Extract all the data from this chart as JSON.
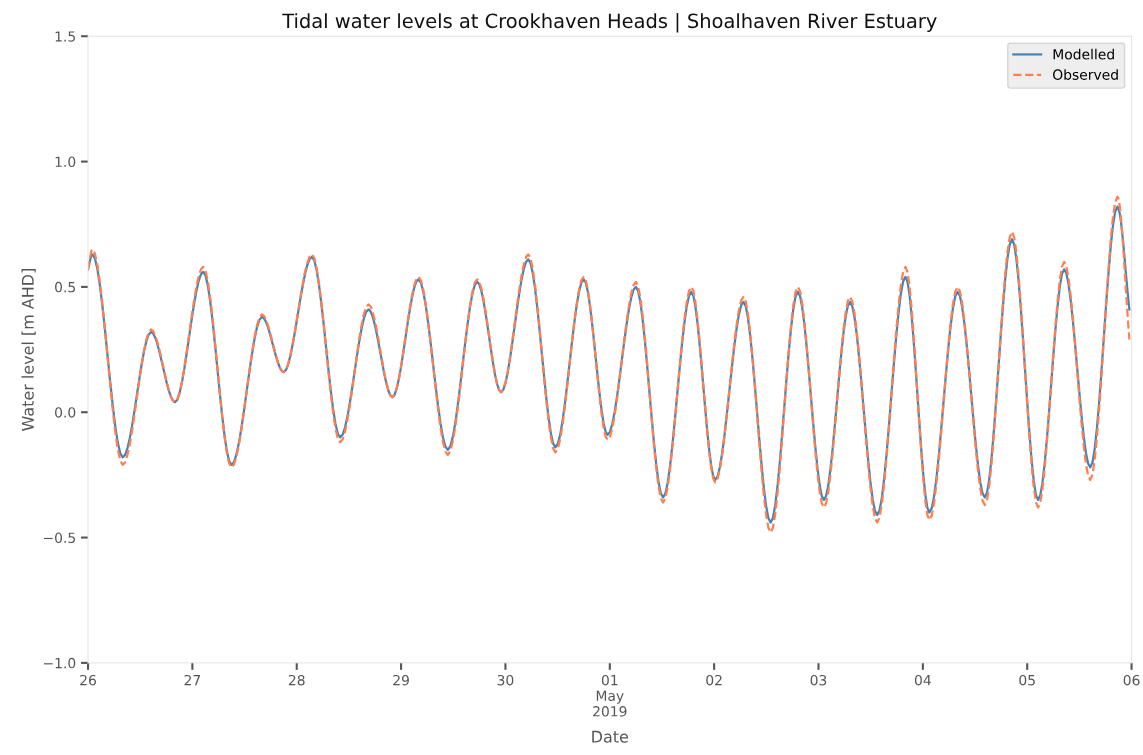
{
  "chart_data": {
    "type": "line",
    "title": "Tidal water levels at Crookhaven Heads | Shoalhaven River Estuary",
    "xlabel": "Date",
    "ylabel": "Water level [m AHD]",
    "x": [
      "2019-04-26T00:00",
      "2019-04-26T01:00",
      "2019-04-26T08:00",
      "2019-04-26T14:30",
      "2019-04-26T20:00",
      "2019-04-27T02:30",
      "2019-04-27T09:00",
      "2019-04-27T16:00",
      "2019-04-27T21:00",
      "2019-04-28T03:30",
      "2019-04-28T10:00",
      "2019-04-28T16:30",
      "2019-04-28T22:00",
      "2019-04-29T04:00",
      "2019-04-29T10:45",
      "2019-04-29T17:30",
      "2019-04-29T23:00",
      "2019-04-30T05:15",
      "2019-04-30T11:30",
      "2019-04-30T18:00",
      "2019-04-30T23:30",
      "2019-05-01T06:00",
      "2019-05-01T12:15",
      "2019-05-01T18:45",
      "2019-05-02T00:15",
      "2019-05-02T06:45",
      "2019-05-02T13:00",
      "2019-05-02T19:15",
      "2019-05-03T01:15",
      "2019-05-03T07:15",
      "2019-05-03T13:30",
      "2019-05-03T20:00",
      "2019-05-04T01:30",
      "2019-05-04T08:00",
      "2019-05-04T14:15",
      "2019-05-04T20:30",
      "2019-05-05T02:30",
      "2019-05-05T08:30",
      "2019-05-05T14:30",
      "2019-05-05T20:45",
      "2019-05-05T23:30"
    ],
    "series": [
      {
        "name": "Modelled",
        "color": "#4682b4",
        "line_style": "solid",
        "values": [
          0.57,
          0.63,
          -0.18,
          0.32,
          0.04,
          0.56,
          -0.21,
          0.38,
          0.16,
          0.62,
          -0.1,
          0.41,
          0.06,
          0.53,
          -0.15,
          0.52,
          0.08,
          0.61,
          -0.14,
          0.53,
          -0.09,
          0.5,
          -0.34,
          0.48,
          -0.27,
          0.44,
          -0.44,
          0.48,
          -0.35,
          0.44,
          -0.41,
          0.54,
          -0.4,
          0.48,
          -0.34,
          0.69,
          -0.35,
          0.57,
          -0.22,
          0.82,
          0.41
        ]
      },
      {
        "name": "Observed",
        "color": "#ff7f50",
        "line_style": "dashed",
        "values": [
          0.57,
          0.65,
          -0.21,
          0.33,
          0.04,
          0.58,
          -0.22,
          0.39,
          0.16,
          0.63,
          -0.12,
          0.43,
          0.06,
          0.54,
          -0.17,
          0.53,
          0.08,
          0.63,
          -0.16,
          0.54,
          -0.11,
          0.52,
          -0.36,
          0.5,
          -0.28,
          0.46,
          -0.48,
          0.5,
          -0.38,
          0.46,
          -0.44,
          0.58,
          -0.43,
          0.5,
          -0.37,
          0.72,
          -0.38,
          0.6,
          -0.27,
          0.86,
          0.29
        ]
      }
    ],
    "xlim": [
      "2019-04-26",
      "2019-05-06"
    ],
    "xticks": [
      {
        "value": "2019-04-26",
        "label": "26"
      },
      {
        "value": "2019-04-27",
        "label": "27"
      },
      {
        "value": "2019-04-28",
        "label": "28"
      },
      {
        "value": "2019-04-29",
        "label": "29"
      },
      {
        "value": "2019-04-30",
        "label": "30"
      },
      {
        "value": "2019-05-01",
        "label": "01\nMay\n2019"
      },
      {
        "value": "2019-05-02",
        "label": "02"
      },
      {
        "value": "2019-05-03",
        "label": "03"
      },
      {
        "value": "2019-05-04",
        "label": "04"
      },
      {
        "value": "2019-05-05",
        "label": "05"
      },
      {
        "value": "2019-05-06",
        "label": "06"
      }
    ],
    "ylim": [
      -1.0,
      1.5
    ],
    "yticks": [
      {
        "value": -1.0,
        "label": "−1.0"
      },
      {
        "value": -0.5,
        "label": "−0.5"
      },
      {
        "value": 0.0,
        "label": "0.0"
      },
      {
        "value": 0.5,
        "label": "0.5"
      },
      {
        "value": 1.0,
        "label": "1.0"
      },
      {
        "value": 1.5,
        "label": "1.5"
      }
    ],
    "grid": false,
    "legend": "top right"
  }
}
